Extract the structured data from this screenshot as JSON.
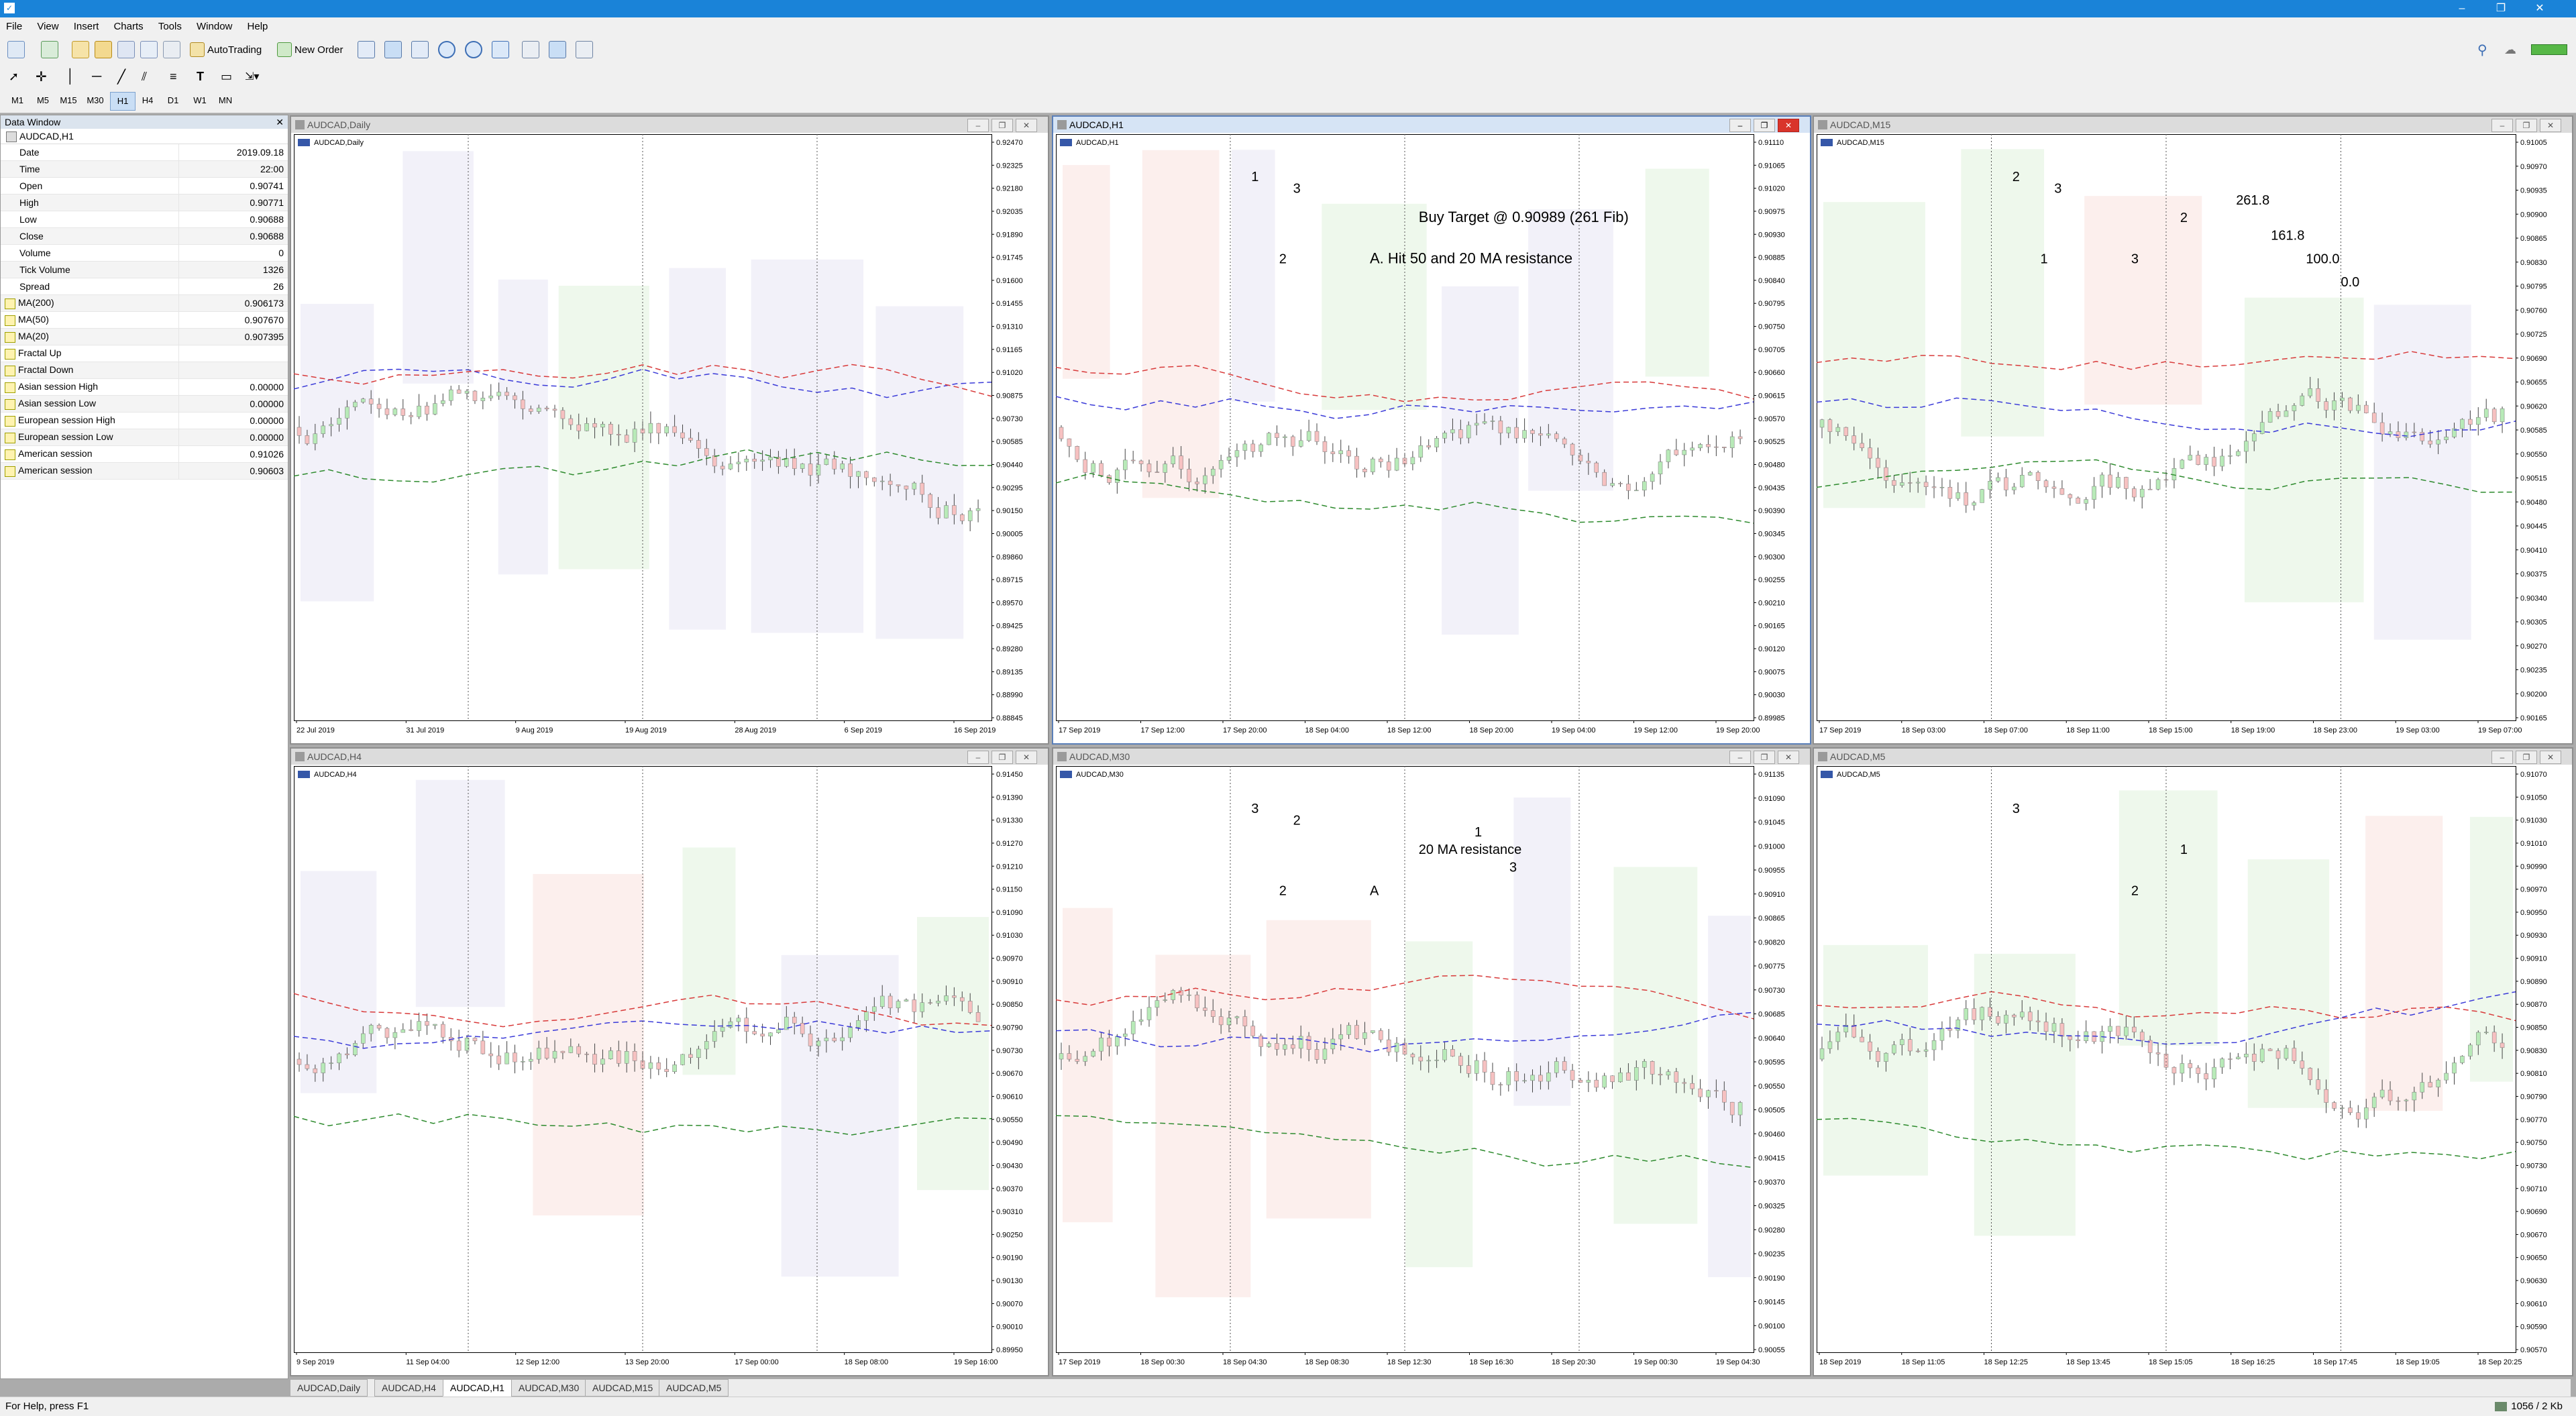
{
  "app": {
    "title": "",
    "window_controls": [
      "–",
      "❐",
      "✕"
    ]
  },
  "menu": [
    "File",
    "View",
    "Insert",
    "Charts",
    "Tools",
    "Window",
    "Help"
  ],
  "toolbar": {
    "autotrading_label": "AutoTrading",
    "neworder_label": "New Order"
  },
  "timeframes": [
    "M1",
    "M5",
    "M15",
    "M30",
    "H1",
    "H4",
    "D1",
    "W1",
    "MN"
  ],
  "active_timeframe": "H1",
  "data_window": {
    "title": "Data Window",
    "symbol": "AUDCAD,H1",
    "rows": [
      {
        "label": "Date",
        "value": "2019.09.18",
        "icon": false
      },
      {
        "label": "Time",
        "value": "22:00",
        "icon": false
      },
      {
        "label": "Open",
        "value": "0.90741",
        "icon": false
      },
      {
        "label": "High",
        "value": "0.90771",
        "icon": false
      },
      {
        "label": "Low",
        "value": "0.90688",
        "icon": false
      },
      {
        "label": "Close",
        "value": "0.90688",
        "icon": false
      },
      {
        "label": "Volume",
        "value": "0",
        "icon": false
      },
      {
        "label": "Tick Volume",
        "value": "1326",
        "icon": false
      },
      {
        "label": "Spread",
        "value": "26",
        "icon": false
      },
      {
        "label": "MA(200)",
        "value": "0.906173",
        "icon": true
      },
      {
        "label": "MA(50)",
        "value": "0.907670",
        "icon": true
      },
      {
        "label": "MA(20)",
        "value": "0.907395",
        "icon": true
      },
      {
        "label": "Fractal Up",
        "value": "",
        "icon": true
      },
      {
        "label": "Fractal Down",
        "value": "",
        "icon": true
      },
      {
        "label": "Asian session High",
        "value": "0.00000",
        "icon": true
      },
      {
        "label": "Asian session Low",
        "value": "0.00000",
        "icon": true
      },
      {
        "label": "European session High",
        "value": "0.00000",
        "icon": true
      },
      {
        "label": "European session Low",
        "value": "0.00000",
        "icon": true
      },
      {
        "label": "American session",
        "value": "0.91026",
        "icon": true
      },
      {
        "label": "American session",
        "value": "0.90603",
        "icon": true
      }
    ]
  },
  "windows": [
    {
      "title": "AUDCAD,Daily",
      "label": "AUDCAD,Daily",
      "active": false,
      "prices": [
        "0.92470",
        "0.92325",
        "0.92180",
        "0.92035",
        "0.91890",
        "0.91745",
        "0.91600",
        "0.91455",
        "0.91310",
        "0.91165",
        "0.91020",
        "0.90875",
        "0.90730",
        "0.90585",
        "0.90440",
        "0.90295",
        "0.90150",
        "0.90005",
        "0.89860",
        "0.89715",
        "0.89570",
        "0.89425",
        "0.89280",
        "0.89135",
        "0.88990",
        "0.88845"
      ],
      "times": [
        "22 Jul 2019",
        "31 Jul 2019",
        "9 Aug 2019",
        "19 Aug 2019",
        "28 Aug 2019",
        "6 Sep 2019",
        "16 Sep 2019"
      ],
      "annotations": []
    },
    {
      "title": "AUDCAD,H1",
      "label": "AUDCAD,H1",
      "active": true,
      "prices": [
        "0.91110",
        "0.91065",
        "0.91020",
        "0.90975",
        "0.90930",
        "0.90885",
        "0.90840",
        "0.90795",
        "0.90750",
        "0.90705",
        "0.90660",
        "0.90615",
        "0.90570",
        "0.90525",
        "0.90480",
        "0.90435",
        "0.90390",
        "0.90345",
        "0.90300",
        "0.90255",
        "0.90210",
        "0.90165",
        "0.90120",
        "0.90075",
        "0.90030",
        "0.89985"
      ],
      "times": [
        "17 Sep 2019",
        "17 Sep 12:00",
        "17 Sep 20:00",
        "18 Sep 04:00",
        "18 Sep 12:00",
        "18 Sep 20:00",
        "19 Sep 04:00",
        "19 Sep 12:00",
        "19 Sep 20:00"
      ],
      "annotations": [
        "A. Hit 50 and 20 MA resistance",
        "Buy Target @ 0.90989 (261 Fib)",
        "1",
        "2",
        "3"
      ]
    },
    {
      "title": "AUDCAD,M15",
      "label": "AUDCAD,M15",
      "active": false,
      "prices": [
        "0.91005",
        "0.90970",
        "0.90935",
        "0.90900",
        "0.90865",
        "0.90830",
        "0.90795",
        "0.90760",
        "0.90725",
        "0.90690",
        "0.90655",
        "0.90620",
        "0.90585",
        "0.90550",
        "0.90515",
        "0.90480",
        "0.90445",
        "0.90410",
        "0.90375",
        "0.90340",
        "0.90305",
        "0.90270",
        "0.90235",
        "0.90200",
        "0.90165"
      ],
      "times": [
        "17 Sep 2019",
        "18 Sep 03:00",
        "18 Sep 07:00",
        "18 Sep 11:00",
        "18 Sep 15:00",
        "18 Sep 19:00",
        "18 Sep 23:00",
        "19 Sep 03:00",
        "19 Sep 07:00"
      ],
      "annotations": [
        "3",
        "2",
        "2",
        "1",
        "3",
        "261.8",
        "161.8",
        "100.0",
        "0.0"
      ]
    },
    {
      "title": "AUDCAD,H4",
      "label": "AUDCAD,H4",
      "active": false,
      "prices": [
        "0.91450",
        "0.91390",
        "0.91330",
        "0.91270",
        "0.91210",
        "0.91150",
        "0.91090",
        "0.91030",
        "0.90970",
        "0.90910",
        "0.90850",
        "0.90790",
        "0.90730",
        "0.90670",
        "0.90610",
        "0.90550",
        "0.90490",
        "0.90430",
        "0.90370",
        "0.90310",
        "0.90250",
        "0.90190",
        "0.90130",
        "0.90070",
        "0.90010",
        "0.89950"
      ],
      "times": [
        "9 Sep 2019",
        "11 Sep 04:00",
        "12 Sep 12:00",
        "13 Sep 20:00",
        "17 Sep 00:00",
        "18 Sep 08:00",
        "19 Sep 16:00"
      ],
      "annotations": []
    },
    {
      "title": "AUDCAD,M30",
      "label": "AUDCAD,M30",
      "active": false,
      "prices": [
        "0.91135",
        "0.91090",
        "0.91045",
        "0.91000",
        "0.90955",
        "0.90910",
        "0.90865",
        "0.90820",
        "0.90775",
        "0.90730",
        "0.90685",
        "0.90640",
        "0.90595",
        "0.90550",
        "0.90505",
        "0.90460",
        "0.90415",
        "0.90370",
        "0.90325",
        "0.90280",
        "0.90235",
        "0.90190",
        "0.90145",
        "0.90100",
        "0.90055"
      ],
      "times": [
        "17 Sep 2019",
        "18 Sep 00:30",
        "18 Sep 04:30",
        "18 Sep 08:30",
        "18 Sep 12:30",
        "18 Sep 16:30",
        "18 Sep 20:30",
        "19 Sep 00:30",
        "19 Sep 04:30"
      ],
      "annotations": [
        "A",
        "20 MA resistance",
        "3",
        "2",
        "2",
        "1",
        "3"
      ]
    },
    {
      "title": "AUDCAD,M5",
      "label": "AUDCAD,M5",
      "active": false,
      "prices": [
        "0.91070",
        "0.91050",
        "0.91030",
        "0.91010",
        "0.90990",
        "0.90970",
        "0.90950",
        "0.90930",
        "0.90910",
        "0.90890",
        "0.90870",
        "0.90850",
        "0.90830",
        "0.90810",
        "0.90790",
        "0.90770",
        "0.90750",
        "0.90730",
        "0.90710",
        "0.90690",
        "0.90670",
        "0.90650",
        "0.90630",
        "0.90610",
        "0.90590",
        "0.90570"
      ],
      "times": [
        "18 Sep 2019",
        "18 Sep 11:05",
        "18 Sep 12:25",
        "18 Sep 13:45",
        "18 Sep 15:05",
        "18 Sep 16:25",
        "18 Sep 17:45",
        "18 Sep 19:05",
        "18 Sep 20:25"
      ],
      "annotations": [
        "2",
        "1",
        "3"
      ]
    }
  ],
  "tabs": [
    "AUDCAD,Daily",
    "AUDCAD,H4",
    "AUDCAD,H1",
    "AUDCAD,M30",
    "AUDCAD,M15",
    "AUDCAD,M5"
  ],
  "active_tab": "AUDCAD,H1",
  "status": {
    "help": "For Help, press F1",
    "traffic": "1056 / 2 Kb"
  }
}
